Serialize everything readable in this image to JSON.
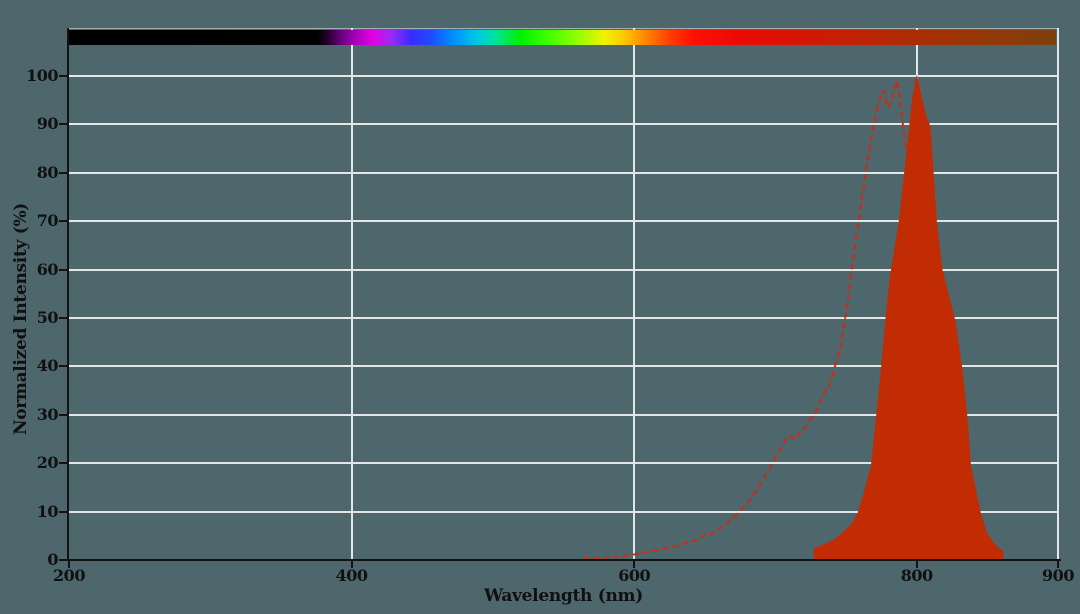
{
  "figure": {
    "has_title": false,
    "has_legend": false,
    "description": "Normalized excitation (dashed) and emission (filled) spectra over a wavelength color bar"
  },
  "colors": {
    "background": "#4d676c",
    "gridline": "#e2e6e6",
    "axis": "#131313",
    "tick_label": "#101010",
    "excitation_line": "#cf2a12",
    "emission_fill": "#c22c04",
    "plot_top_border": "rgba(230,236,236,0.55)"
  },
  "chart_data": {
    "type": "area",
    "title": "",
    "xlabel": "Wavelength (nm)",
    "ylabel": "Normalized Intensity (%)",
    "xlim": [
      200,
      900
    ],
    "ylim": [
      0,
      100
    ],
    "x_ticks": [
      200,
      400,
      600,
      800,
      900
    ],
    "y_ticks": [
      0,
      10,
      20,
      30,
      40,
      50,
      60,
      70,
      80,
      90,
      100
    ],
    "x_gridlines": [
      400,
      600,
      800,
      900
    ],
    "grid": true,
    "legend_position": "none",
    "series": [
      {
        "name": "excitation-spectrum",
        "style": "dashed-line",
        "color": "#cf2a12",
        "points": [
          [
            564,
            0.2
          ],
          [
            576,
            0.4
          ],
          [
            590,
            0.7
          ],
          [
            601,
            1.2
          ],
          [
            615,
            2.0
          ],
          [
            629,
            2.9
          ],
          [
            643,
            4.0
          ],
          [
            648,
            4.8
          ],
          [
            651,
            5.4
          ],
          [
            653,
            5.1
          ],
          [
            658,
            6.0
          ],
          [
            666,
            7.6
          ],
          [
            675,
            10.1
          ],
          [
            683,
            12.8
          ],
          [
            691,
            16.5
          ],
          [
            700,
            21.0
          ],
          [
            707,
            24.8
          ],
          [
            710,
            25.7
          ],
          [
            712,
            25.2
          ],
          [
            714,
            24.9
          ],
          [
            717,
            26.2
          ],
          [
            721,
            27.3
          ],
          [
            728,
            30.4
          ],
          [
            735,
            34.8
          ],
          [
            738,
            35.8
          ],
          [
            741,
            38.9
          ],
          [
            746,
            43.8
          ],
          [
            751,
            53.0
          ],
          [
            756,
            64.0
          ],
          [
            760,
            72.3
          ],
          [
            765,
            82.2
          ],
          [
            770,
            90.5
          ],
          [
            774,
            95.5
          ],
          [
            776.5,
            97.0
          ],
          [
            779.5,
            93.4
          ],
          [
            782,
            94.8
          ],
          [
            784,
            97.0
          ],
          [
            786,
            99.0
          ],
          [
            788,
            95.0
          ],
          [
            790,
            90.5
          ],
          [
            792.5,
            84.3
          ]
        ]
      },
      {
        "name": "emission-spectrum",
        "style": "filled-area",
        "color": "#c22c04",
        "points": [
          [
            727.5,
            0
          ],
          [
            727.5,
            2.3
          ],
          [
            737,
            3.5
          ],
          [
            744,
            4.6
          ],
          [
            750,
            6.3
          ],
          [
            754,
            7.4
          ],
          [
            758.5,
            9.7
          ],
          [
            763,
            14.0
          ],
          [
            768,
            19.6
          ],
          [
            771.5,
            29.3
          ],
          [
            775,
            39.4
          ],
          [
            778,
            49.2
          ],
          [
            781,
            57.9
          ],
          [
            787.5,
            69.7
          ],
          [
            793,
            84.0
          ],
          [
            797,
            95.0
          ],
          [
            800,
            100
          ],
          [
            803,
            96.0
          ],
          [
            806,
            92.0
          ],
          [
            809.5,
            89.5
          ],
          [
            814,
            69.6
          ],
          [
            818,
            59.9
          ],
          [
            827,
            49.4
          ],
          [
            832,
            39.5
          ],
          [
            835.5,
            29.6
          ],
          [
            838,
            19.6
          ],
          [
            845,
            9.7
          ],
          [
            849.5,
            5.5
          ],
          [
            856.5,
            2.7
          ],
          [
            861,
            1.8
          ],
          [
            861,
            0
          ]
        ]
      }
    ],
    "spectrum_bar": {
      "range_nm": [
        200,
        900
      ],
      "stops": [
        {
          "pos": 0.0,
          "color": "#000000"
        },
        {
          "pos": 0.252,
          "color": "#010101"
        },
        {
          "pos": 0.262,
          "color": "#25002b"
        },
        {
          "pos": 0.276,
          "color": "#6a0080"
        },
        {
          "pos": 0.291,
          "color": "#a800b8"
        },
        {
          "pos": 0.308,
          "color": "#e400e4"
        },
        {
          "pos": 0.326,
          "color": "#9b2bf2"
        },
        {
          "pos": 0.346,
          "color": "#3c2bff"
        },
        {
          "pos": 0.366,
          "color": "#1f49ff"
        },
        {
          "pos": 0.389,
          "color": "#008fff"
        },
        {
          "pos": 0.411,
          "color": "#00c3e8"
        },
        {
          "pos": 0.43,
          "color": "#00e0a8"
        },
        {
          "pos": 0.457,
          "color": "#00f000"
        },
        {
          "pos": 0.486,
          "color": "#40ff00"
        },
        {
          "pos": 0.514,
          "color": "#90ff00"
        },
        {
          "pos": 0.543,
          "color": "#f2f200"
        },
        {
          "pos": 0.564,
          "color": "#ffc400"
        },
        {
          "pos": 0.586,
          "color": "#ff8000"
        },
        {
          "pos": 0.61,
          "color": "#ff3c00"
        },
        {
          "pos": 0.633,
          "color": "#ff0e00"
        },
        {
          "pos": 0.68,
          "color": "#ea0a00"
        },
        {
          "pos": 0.73,
          "color": "#d81400"
        },
        {
          "pos": 0.81,
          "color": "#bb2400"
        },
        {
          "pos": 0.9,
          "color": "#9d3404"
        },
        {
          "pos": 1.0,
          "color": "#7c400c"
        }
      ]
    }
  }
}
